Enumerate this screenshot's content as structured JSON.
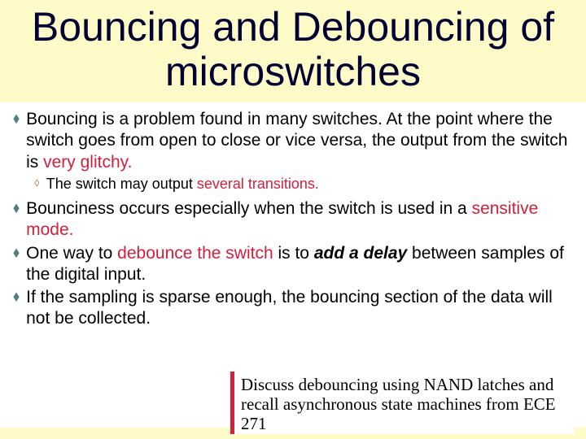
{
  "title": "Bouncing and Debouncing of microswitches",
  "bullets": {
    "b1_pre": "Bouncing is a problem found in many switches. At the point where the switch goes from open to close or vice versa, the output from the switch is ",
    "b1_red": "very glitchy.",
    "b1a_pre": "The switch may output ",
    "b1a_red": "several transitions.",
    "b2_pre": "Bounciness occurs especially when the switch is used in a ",
    "b2_red": "sensitive mode.",
    "b3_pre": "One way to ",
    "b3_red": "debounce the switch",
    "b3_mid": " is to ",
    "b3_bold": "add a delay",
    "b3_post": " between samples of the digital input.",
    "b4": "If the sampling is sparse enough, the bouncing section of the data will not be collected."
  },
  "note": "Discuss debouncing using NAND latches and recall asynchronous state machines from ECE 271",
  "colors": {
    "background": "#fffbc8",
    "content_bg": "#ffffff",
    "title_color": "#000033",
    "text_color": "#000000",
    "highlight": "#d21f3c",
    "bullet1_marker": "#527f7f",
    "bullet2_marker": "#b07f62",
    "note_border": "#d21f3c"
  }
}
